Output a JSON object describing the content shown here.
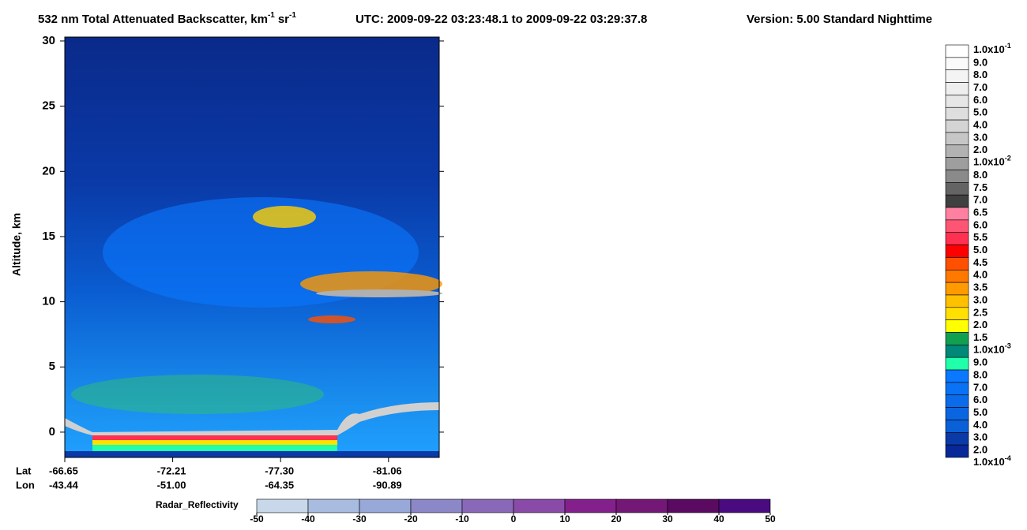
{
  "chart_data": {
    "type": "heatmap",
    "title": {
      "main": "532 nm Total Attenuated Backscatter, km",
      "unit1_exp": "-1",
      "unit2": "sr",
      "unit2_exp": "-1",
      "utc": "UTC:  2009-09-22 03:23:48.1  to  2009-09-22 03:29:37.8",
      "version": "Version: 5.00  Standard  Nighttime"
    },
    "ylabel": "Altitude, km",
    "ylim": [
      -1.94,
      30.3
    ],
    "yticks": [
      0,
      5,
      10,
      15,
      20,
      25,
      30
    ],
    "x_rows": [
      {
        "name": "Lat",
        "ticks": [
          -66.65,
          -72.21,
          {
            "value": -77.3,
            "label": "-77.30"
          },
          -81.06
        ]
      },
      {
        "name": "Lon",
        "ticks": [
          -43.44,
          {
            "value": -51,
            "label": "-51.00"
          },
          -64.35,
          -90.89
        ]
      }
    ],
    "colorbar": {
      "labels": [
        {
          "base": "1.0x10",
          "exp": "-1"
        },
        "9.0",
        "8.0",
        "7.0",
        "6.0",
        "5.0",
        "4.0",
        "3.0",
        "2.0",
        {
          "base": "1.0x10",
          "exp": "-2"
        },
        "8.0",
        "7.5",
        "7.0",
        "6.5",
        "6.0",
        "5.5",
        "5.0",
        "4.5",
        "4.0",
        "3.5",
        "3.0",
        "2.5",
        "2.0",
        "1.5",
        {
          "base": "1.0x10",
          "exp": "-3"
        },
        "9.0",
        "8.0",
        "7.0",
        "6.0",
        "5.0",
        "4.0",
        "3.0",
        "2.0",
        {
          "base": "1.0x10",
          "exp": "-4"
        }
      ],
      "colors": [
        "#ffffff",
        "#fafafa",
        "#f4f4f4",
        "#eeeeee",
        "#e6e6e6",
        "#dedede",
        "#d4d4d4",
        "#c6c6c6",
        "#b2b2b2",
        "#9e9e9e",
        "#8a8a8a",
        "#646464",
        "#404040",
        "#ff80a0",
        "#ff5575",
        "#ff3050",
        "#ff0000",
        "#ff5000",
        "#ff7800",
        "#ff9a00",
        "#ffc000",
        "#ffe000",
        "#ffff00",
        "#10a050",
        "#008878",
        "#20ffaa",
        "#0a78ff",
        "#0a72f4",
        "#0a6cea",
        "#0a66e0",
        "#0a60d6",
        "#0a3aa8",
        "#08289a"
      ]
    },
    "radar": {
      "label": "Radar_Reflectivity",
      "ticks": [
        -50,
        -40,
        -30,
        -20,
        -10,
        0,
        10,
        20,
        30,
        40,
        50
      ],
      "colors": [
        "#c8d8ea",
        "#a8bce0",
        "#98a8d8",
        "#8c88c8",
        "#8a68b8",
        "#8a4aa8",
        "#84208c",
        "#741878",
        "#5a0a60",
        "#4a0a80"
      ]
    }
  }
}
